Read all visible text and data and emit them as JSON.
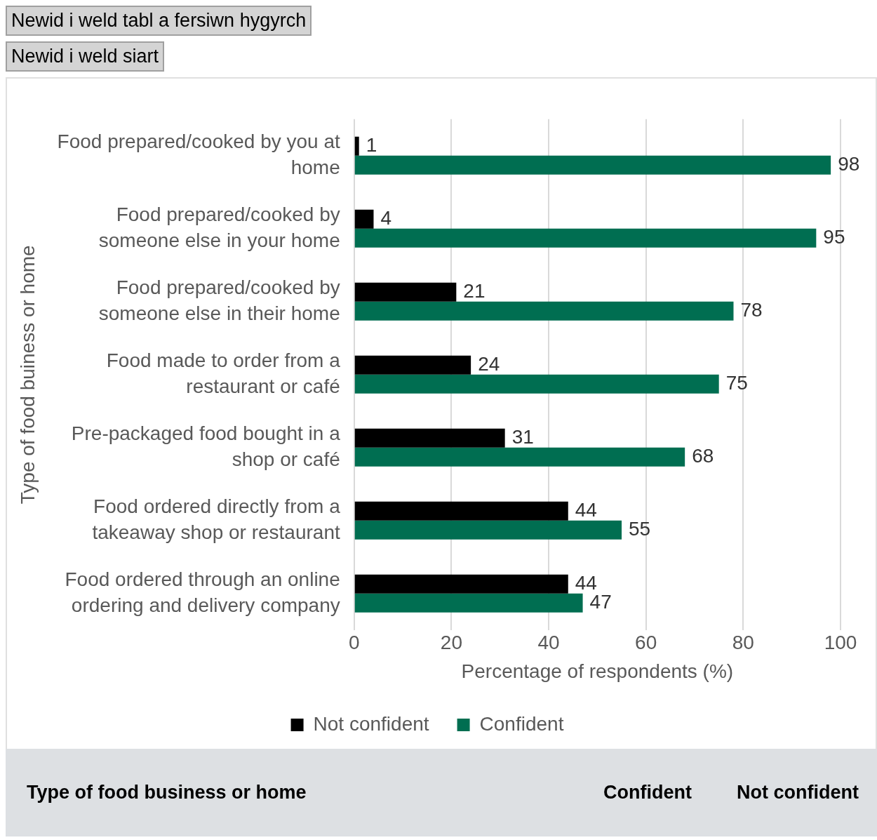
{
  "chart_data": {
    "type": "bar",
    "orientation": "horizontal",
    "xlabel": "Percentage of respondents (%)",
    "ylabel": "Type of food buiness or home",
    "categories": [
      "Food prepared/cooked by you at home",
      "Food prepared/cooked by someone else in your home",
      "Food prepared/cooked by someone else in their home",
      "Food made to order from a restaurant or café",
      "Pre-packaged food bought in a shop or café",
      "Food ordered directly from a takeaway shop or restaurant",
      "Food ordered through an online ordering and delivery company"
    ],
    "series": [
      {
        "name": "Not confident",
        "color": "#000000",
        "values": [
          1,
          4,
          21,
          24,
          31,
          44,
          44
        ]
      },
      {
        "name": "Confident",
        "color": "#006e51",
        "values": [
          98,
          95,
          78,
          75,
          68,
          55,
          47
        ]
      }
    ],
    "xlim": [
      0,
      100
    ],
    "xticks": [
      0,
      20,
      40,
      60,
      80,
      100
    ],
    "grid": "x",
    "legend": "bottom",
    "data_labels": true,
    "annotations": [
      "Newid i weld tabl a fersiwn hygyrch",
      "Newid i weld siart",
      "Type of food business or home",
      "Confident",
      "Not confident"
    ]
  }
}
